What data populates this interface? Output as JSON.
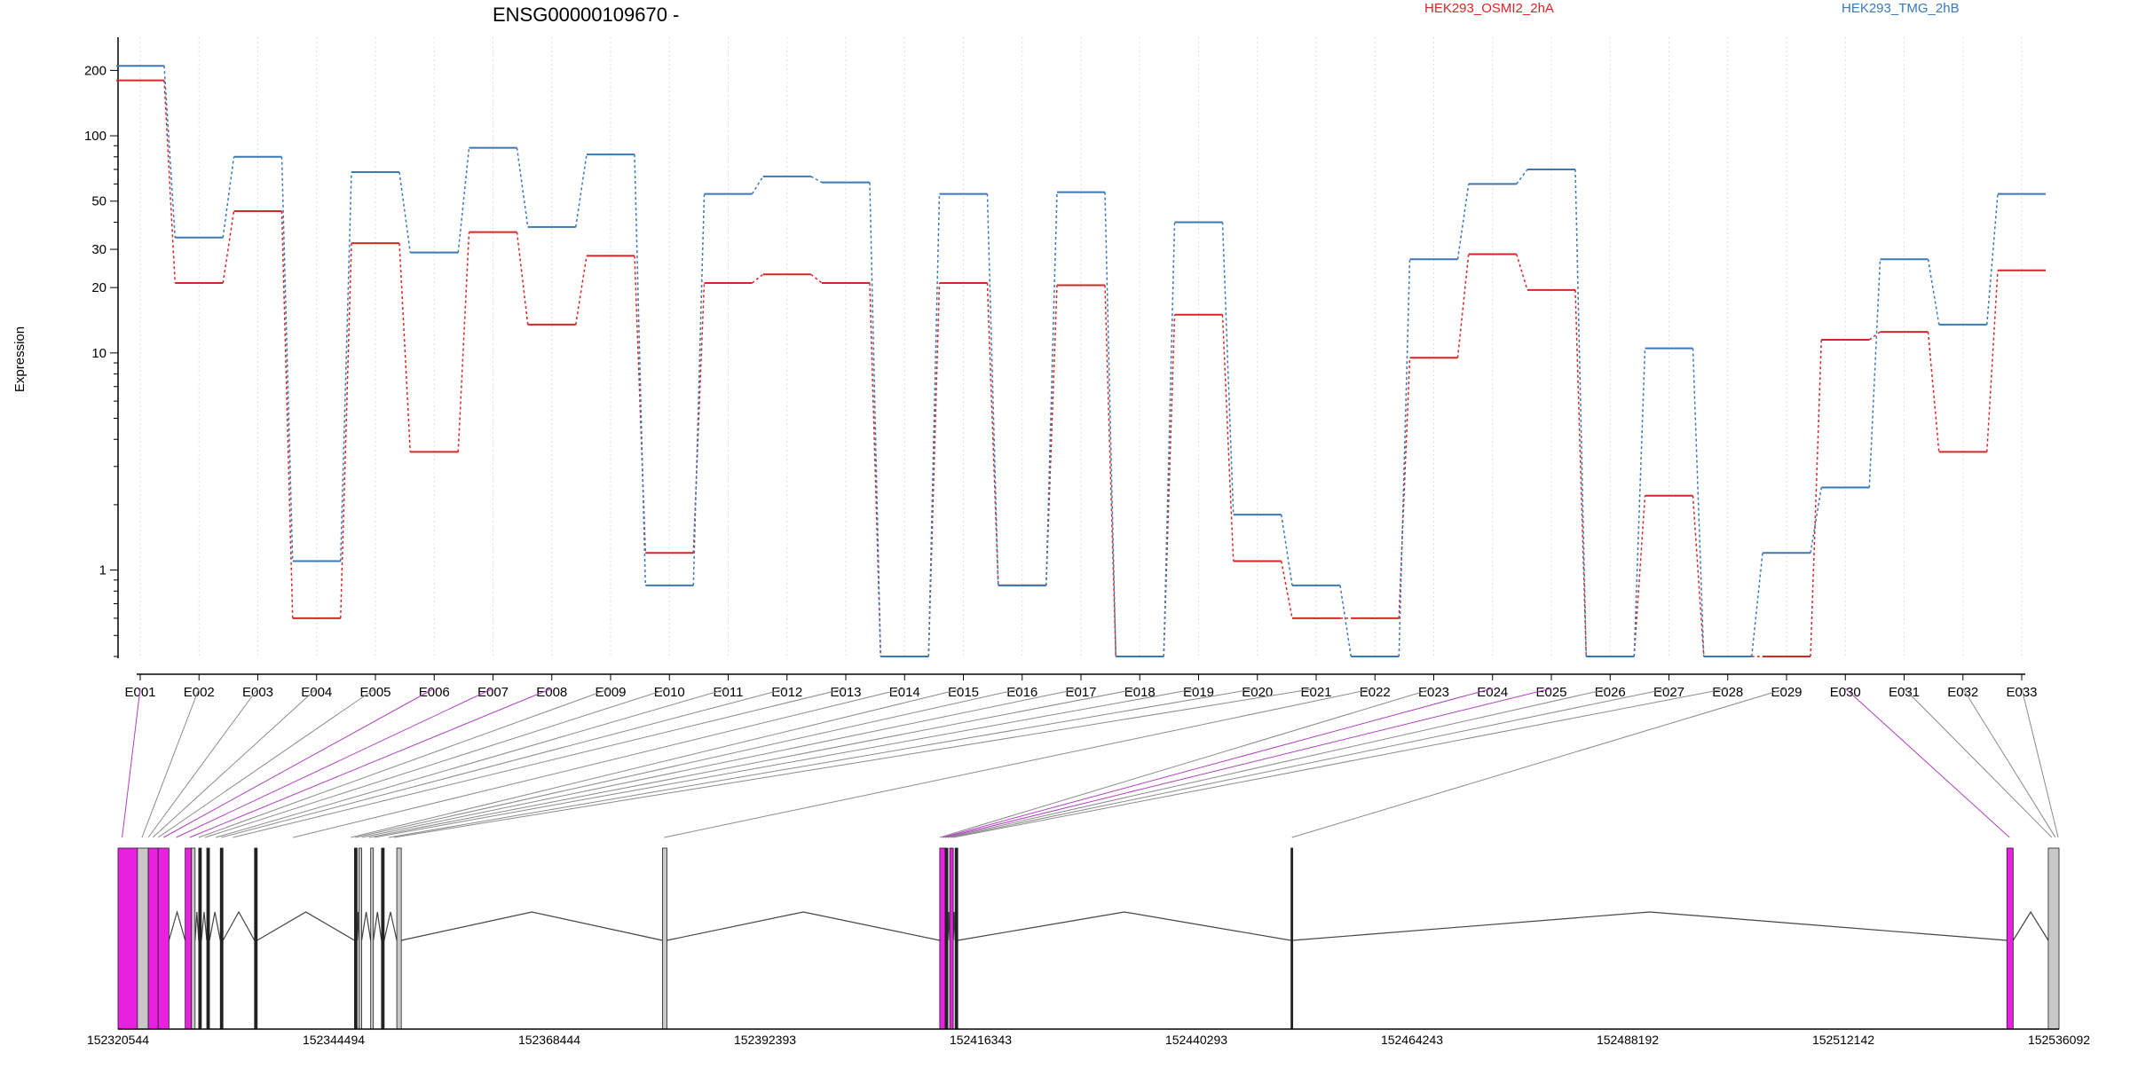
{
  "title": "ENSG00000109670 -",
  "ylabel": "Expression",
  "legend": [
    {
      "name": "HEK293_OSMI2_2hA",
      "color": "#d62728"
    },
    {
      "name": "HEK293_TMG_2hB",
      "color": "#3a78b8"
    }
  ],
  "colors": {
    "osmi": "#d62728",
    "tmg": "#3a78b8",
    "exon_magenta": "#e820e0",
    "exon_gray": "#c8c8c8",
    "connector_gray": "#8a8a8a",
    "connector_magenta": "#b040c0",
    "grid": "#dddddd"
  },
  "chart_data": {
    "type": "line",
    "yscale": "log",
    "ylim": [
      0.4,
      240
    ],
    "yticks": [
      1,
      10,
      20,
      30,
      50,
      100,
      200
    ],
    "categories": [
      "E001",
      "E002",
      "E003",
      "E004",
      "E005",
      "E006",
      "E007",
      "E008",
      "E009",
      "E010",
      "E011",
      "E012",
      "E013",
      "E014",
      "E015",
      "E016",
      "E017",
      "E018",
      "E019",
      "E020",
      "E021",
      "E022",
      "E023",
      "E024",
      "E025",
      "E026",
      "E027",
      "E028",
      "E029",
      "E030",
      "E031",
      "E032",
      "E033"
    ],
    "series": [
      {
        "name": "HEK293_OSMI2_2hA",
        "values": [
          180,
          21,
          45,
          0.6,
          32,
          3.5,
          36,
          13.5,
          28,
          1.2,
          21,
          23,
          21,
          0.4,
          21,
          0.85,
          20.5,
          0.4,
          15,
          1.1,
          0.6,
          0.6,
          9.5,
          28.5,
          19.5,
          0.4,
          2.2,
          0.4,
          0.4,
          11.5,
          12.5,
          3.5,
          24
        ]
      },
      {
        "name": "HEK293_TMG_2hB",
        "values": [
          210,
          34,
          80,
          1.1,
          68,
          29,
          88,
          38,
          82,
          0.85,
          54,
          65,
          61,
          0.4,
          54,
          0.85,
          55,
          0.4,
          40,
          1.8,
          0.85,
          0.4,
          27,
          60,
          70,
          0.4,
          10.5,
          0.4,
          1.2,
          2.4,
          27,
          13.5,
          54
        ]
      }
    ],
    "genomic_axis": {
      "ticks": [
        "152320544",
        "152344494",
        "152368444",
        "152392393",
        "152416343",
        "152440293",
        "152464243",
        "152488192",
        "152512142",
        "152536092"
      ],
      "range": [
        152320544,
        152536092
      ]
    },
    "exon_blocks": [
      {
        "start": 152320544,
        "end": 152322700,
        "color": "magenta"
      },
      {
        "start": 152322700,
        "end": 152323900,
        "color": "gray"
      },
      {
        "start": 152323900,
        "end": 152325000,
        "color": "magenta"
      },
      {
        "start": 152325000,
        "end": 152326200,
        "color": "magenta"
      },
      {
        "start": 152328000,
        "end": 152328700,
        "color": "magenta"
      },
      {
        "start": 152328700,
        "end": 152329100,
        "color": "gray"
      },
      {
        "start": 152329500,
        "end": 152329800,
        "color": "black"
      },
      {
        "start": 152330400,
        "end": 152330700,
        "color": "black"
      },
      {
        "start": 152331900,
        "end": 152332200,
        "color": "black"
      },
      {
        "start": 152335700,
        "end": 152336000,
        "color": "black"
      },
      {
        "start": 152346800,
        "end": 152347100,
        "color": "black"
      },
      {
        "start": 152347300,
        "end": 152347600,
        "color": "gray"
      },
      {
        "start": 152348600,
        "end": 152348900,
        "color": "gray"
      },
      {
        "start": 152349800,
        "end": 152350100,
        "color": "black"
      },
      {
        "start": 152351500,
        "end": 152352000,
        "color": "gray"
      },
      {
        "start": 152381000,
        "end": 152381500,
        "color": "gray"
      },
      {
        "start": 152411800,
        "end": 152412400,
        "color": "magenta"
      },
      {
        "start": 152412400,
        "end": 152412700,
        "color": "black"
      },
      {
        "start": 152412900,
        "end": 152413300,
        "color": "magenta"
      },
      {
        "start": 152413500,
        "end": 152413800,
        "color": "black"
      },
      {
        "start": 152450800,
        "end": 152451000,
        "color": "black"
      },
      {
        "start": 152530300,
        "end": 152531000,
        "color": "magenta"
      },
      {
        "start": 152534900,
        "end": 152536092,
        "color": "gray"
      }
    ],
    "exon_positions": [
      152321000,
      152323200,
      152323900,
      152324400,
      152325000,
      152325600,
      152327000,
      152328500,
      152329500,
      152330200,
      152331400,
      152332000,
      152333300,
      152340000,
      152346400,
      152346900,
      152347600,
      152348400,
      152349000,
      152350600,
      152351200,
      152381200,
      152411800,
      152412100,
      152412400,
      152412700,
      152413000,
      152413300,
      152450900,
      152530600,
      152535300,
      152535700,
      152536000
    ]
  }
}
